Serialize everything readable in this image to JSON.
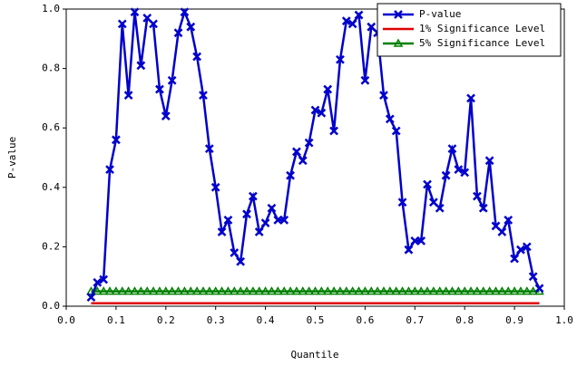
{
  "chart_data": {
    "type": "line",
    "x_label": "Quantile",
    "y_label": "P-value",
    "x": [
      0.05,
      0.0625,
      0.075,
      0.0875,
      0.1,
      0.1125,
      0.125,
      0.1375,
      0.15,
      0.1625,
      0.175,
      0.1875,
      0.2,
      0.2125,
      0.225,
      0.2375,
      0.25,
      0.2625,
      0.275,
      0.2875,
      0.3,
      0.3125,
      0.325,
      0.3375,
      0.35,
      0.3625,
      0.375,
      0.3875,
      0.4,
      0.4125,
      0.425,
      0.4375,
      0.45,
      0.4625,
      0.475,
      0.4875,
      0.5,
      0.5125,
      0.525,
      0.5375,
      0.55,
      0.5625,
      0.575,
      0.5875,
      0.6,
      0.6125,
      0.625,
      0.6375,
      0.65,
      0.6625,
      0.675,
      0.6875,
      0.7,
      0.7125,
      0.725,
      0.7375,
      0.75,
      0.7625,
      0.775,
      0.7875,
      0.8,
      0.8125,
      0.825,
      0.8375,
      0.85,
      0.8625,
      0.875,
      0.8875,
      0.9,
      0.9125,
      0.925,
      0.9375,
      0.95
    ],
    "series": [
      {
        "name": "P-value",
        "color": "#0000cc",
        "marker": "x",
        "values": [
          0.03,
          0.08,
          0.09,
          0.46,
          0.56,
          0.95,
          0.71,
          0.99,
          0.81,
          0.97,
          0.95,
          0.73,
          0.64,
          0.76,
          0.92,
          0.99,
          0.94,
          0.84,
          0.71,
          0.53,
          0.4,
          0.25,
          0.29,
          0.18,
          0.15,
          0.31,
          0.37,
          0.25,
          0.28,
          0.33,
          0.29,
          0.29,
          0.44,
          0.52,
          0.49,
          0.55,
          0.66,
          0.65,
          0.73,
          0.59,
          0.83,
          0.96,
          0.95,
          0.98,
          0.76,
          0.94,
          0.92,
          0.71,
          0.63,
          0.59,
          0.35,
          0.19,
          0.22,
          0.22,
          0.41,
          0.35,
          0.33,
          0.44,
          0.53,
          0.46,
          0.45,
          0.7,
          0.37,
          0.33,
          0.49,
          0.27,
          0.25,
          0.29,
          0.16,
          0.19,
          0.2,
          0.1,
          0.06
        ]
      },
      {
        "name": "1% Significance Level",
        "color": "#e00000",
        "marker": "none",
        "values": [
          0.01,
          0.01,
          0.01,
          0.01,
          0.01,
          0.01,
          0.01,
          0.01,
          0.01,
          0.01,
          0.01,
          0.01,
          0.01,
          0.01,
          0.01,
          0.01,
          0.01,
          0.01,
          0.01,
          0.01,
          0.01,
          0.01,
          0.01,
          0.01,
          0.01,
          0.01,
          0.01,
          0.01,
          0.01,
          0.01,
          0.01,
          0.01,
          0.01,
          0.01,
          0.01,
          0.01,
          0.01,
          0.01,
          0.01,
          0.01,
          0.01,
          0.01,
          0.01,
          0.01,
          0.01,
          0.01,
          0.01,
          0.01,
          0.01,
          0.01,
          0.01,
          0.01,
          0.01,
          0.01,
          0.01,
          0.01,
          0.01,
          0.01,
          0.01,
          0.01,
          0.01,
          0.01,
          0.01,
          0.01,
          0.01,
          0.01,
          0.01,
          0.01,
          0.01,
          0.01,
          0.01,
          0.01,
          0.01
        ]
      },
      {
        "name": "5% Significance Level",
        "color": "#008000",
        "marker": "triangle",
        "values": [
          0.05,
          0.05,
          0.05,
          0.05,
          0.05,
          0.05,
          0.05,
          0.05,
          0.05,
          0.05,
          0.05,
          0.05,
          0.05,
          0.05,
          0.05,
          0.05,
          0.05,
          0.05,
          0.05,
          0.05,
          0.05,
          0.05,
          0.05,
          0.05,
          0.05,
          0.05,
          0.05,
          0.05,
          0.05,
          0.05,
          0.05,
          0.05,
          0.05,
          0.05,
          0.05,
          0.05,
          0.05,
          0.05,
          0.05,
          0.05,
          0.05,
          0.05,
          0.05,
          0.05,
          0.05,
          0.05,
          0.05,
          0.05,
          0.05,
          0.05,
          0.05,
          0.05,
          0.05,
          0.05,
          0.05,
          0.05,
          0.05,
          0.05,
          0.05,
          0.05,
          0.05,
          0.05,
          0.05,
          0.05,
          0.05,
          0.05,
          0.05,
          0.05,
          0.05,
          0.05,
          0.05,
          0.05,
          0.05
        ]
      }
    ],
    "xlim": [
      0,
      1
    ],
    "xticks": [
      {
        "value": 0,
        "label": "0.0"
      },
      0.1,
      0.2,
      0.3,
      0.4,
      0.5,
      0.6,
      0.7,
      0.8,
      0.9,
      {
        "value": 1,
        "label": "1.0"
      }
    ],
    "ylim": [
      0,
      1
    ],
    "yticks": [
      {
        "value": 0,
        "label": "0.0"
      },
      0.2,
      0.4,
      0.6,
      0.8,
      {
        "value": 1,
        "label": "1.0"
      }
    ],
    "legend": "top-right"
  }
}
